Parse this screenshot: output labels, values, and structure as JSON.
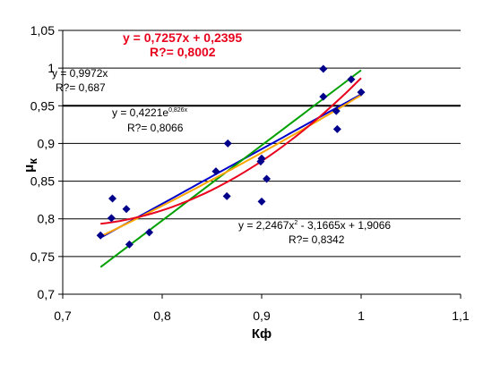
{
  "chart_data": {
    "type": "scatter",
    "title": "",
    "xlabel": "Кф",
    "ylabel": "μк",
    "xlim": [
      0.7,
      1.1
    ],
    "ylim": [
      0.7,
      1.05
    ],
    "x_ticks": [
      "0,7",
      "0,8",
      "0,9",
      "1",
      "1,1"
    ],
    "y_ticks": [
      "0,7",
      "0,75",
      "0,8",
      "0,85",
      "0,9",
      "0,95",
      "1",
      "1,05"
    ],
    "grid": "horizontal",
    "legend": "none",
    "series": [
      {
        "type": "scatter",
        "color": "#00008b",
        "marker": "diamond",
        "points": [
          {
            "x": 0.738,
            "y": 0.778
          },
          {
            "x": 0.749,
            "y": 0.801
          },
          {
            "x": 0.75,
            "y": 0.827
          },
          {
            "x": 0.764,
            "y": 0.813
          },
          {
            "x": 0.767,
            "y": 0.766
          },
          {
            "x": 0.787,
            "y": 0.782
          },
          {
            "x": 0.854,
            "y": 0.863
          },
          {
            "x": 0.865,
            "y": 0.83
          },
          {
            "x": 0.866,
            "y": 0.9
          },
          {
            "x": 0.899,
            "y": 0.876
          },
          {
            "x": 0.9,
            "y": 0.88
          },
          {
            "x": 0.9,
            "y": 0.823
          },
          {
            "x": 0.905,
            "y": 0.853
          },
          {
            "x": 0.962,
            "y": 0.999
          },
          {
            "x": 0.962,
            "y": 0.962
          },
          {
            "x": 0.975,
            "y": 0.943
          },
          {
            "x": 0.976,
            "y": 0.919
          },
          {
            "x": 0.99,
            "y": 0.985
          },
          {
            "x": 1.0,
            "y": 0.968
          }
        ]
      }
    ],
    "trendlines": [
      {
        "kind": "linear",
        "color": "#0000cc",
        "slope": 0.7257,
        "intercept": 0.2395,
        "x_range": [
          0.738,
          1.0
        ]
      },
      {
        "kind": "linear-through-origin",
        "color": "#00a000",
        "slope": 0.9972,
        "x_range": [
          0.738,
          1.0
        ]
      },
      {
        "kind": "exponential",
        "color": "#ffa500",
        "a": 0.4221,
        "b": 0.826,
        "x_range": [
          0.738,
          1.0
        ]
      },
      {
        "kind": "polynomial",
        "color": "#e8001c",
        "coefficients": [
          2.2467,
          -3.1665,
          1.9066
        ],
        "x_range": [
          0.738,
          1.0
        ]
      }
    ],
    "annotations": [
      {
        "id": "lin",
        "color": "#e8001c",
        "bold": true,
        "line1": "y = 0,7257x + 0,2395",
        "line2": "R?= 0,8002"
      },
      {
        "id": "origin",
        "line1": "y = 0,9972x",
        "line2": "R?= 0,687"
      },
      {
        "id": "exp",
        "line1_main": "y = 0,4221e",
        "line1_sup": "0,826x",
        "line2": "R?= 0,8066"
      },
      {
        "id": "poly",
        "line1_pre": "y = 2,2467x",
        "line1_sup": "2",
        "line1_post": " - 3,1665x + 1,9066",
        "line2": "R?= 0,8342"
      }
    ]
  }
}
